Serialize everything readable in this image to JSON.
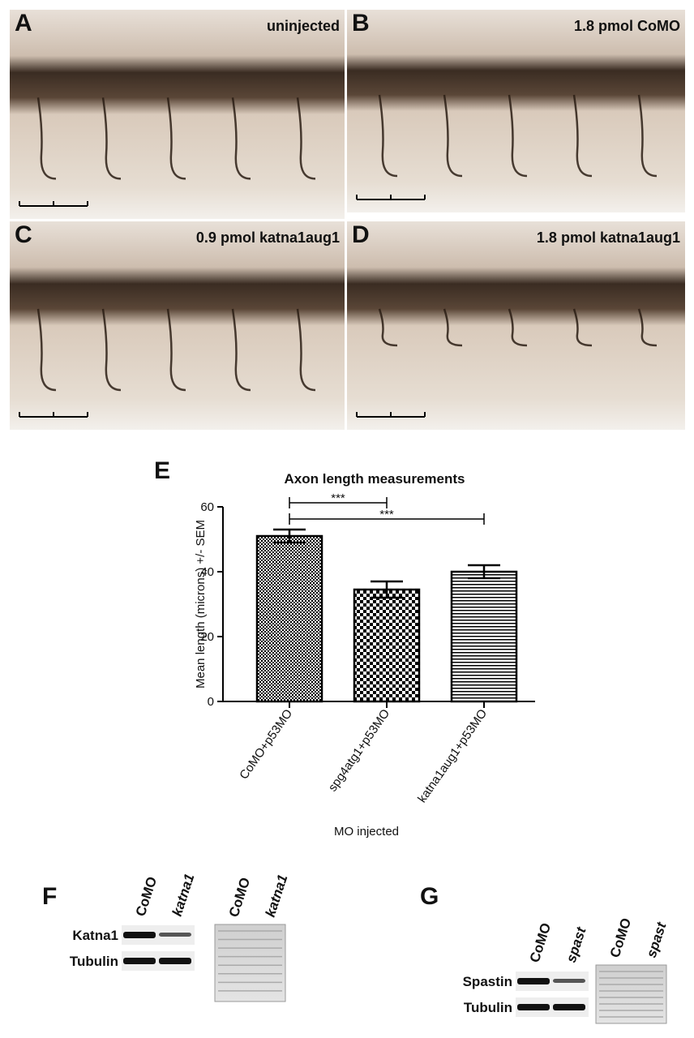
{
  "panels": [
    {
      "letter": "A",
      "caption": "uninjected"
    },
    {
      "letter": "B",
      "caption": "1.8 pmol CoMO"
    },
    {
      "letter": "C",
      "caption": "0.9 pmol katna1aug1"
    },
    {
      "letter": "D",
      "caption": "1.8 pmol katna1aug1"
    }
  ],
  "chart_data": {
    "type": "bar",
    "letter": "E",
    "title": "Axon length measurements",
    "x_label": "MO injected",
    "y_label": "Mean length (microns) +/- SEM",
    "categories": [
      "CoMO+p53MO",
      "spg4atg1+p53MO",
      "katna1aug1+p53MO"
    ],
    "values": [
      51,
      34.5,
      40
    ],
    "errors": [
      2,
      2.5,
      2
    ],
    "ylim": [
      0,
      60
    ],
    "yticks": [
      0,
      20,
      40,
      60
    ],
    "significance": [
      "***",
      "***"
    ]
  },
  "blots": [
    {
      "letter": "F",
      "lanes": [
        "CoMO",
        "katna1"
      ],
      "stain_lanes": [
        "CoMO",
        "katna1"
      ],
      "rows": [
        "Katna1",
        "Tubulin"
      ]
    },
    {
      "letter": "G",
      "lanes": [
        "CoMO",
        "spast"
      ],
      "stain_lanes": [
        "CoMO",
        "spast"
      ],
      "rows": [
        "Spastin",
        "Tubulin"
      ]
    }
  ]
}
